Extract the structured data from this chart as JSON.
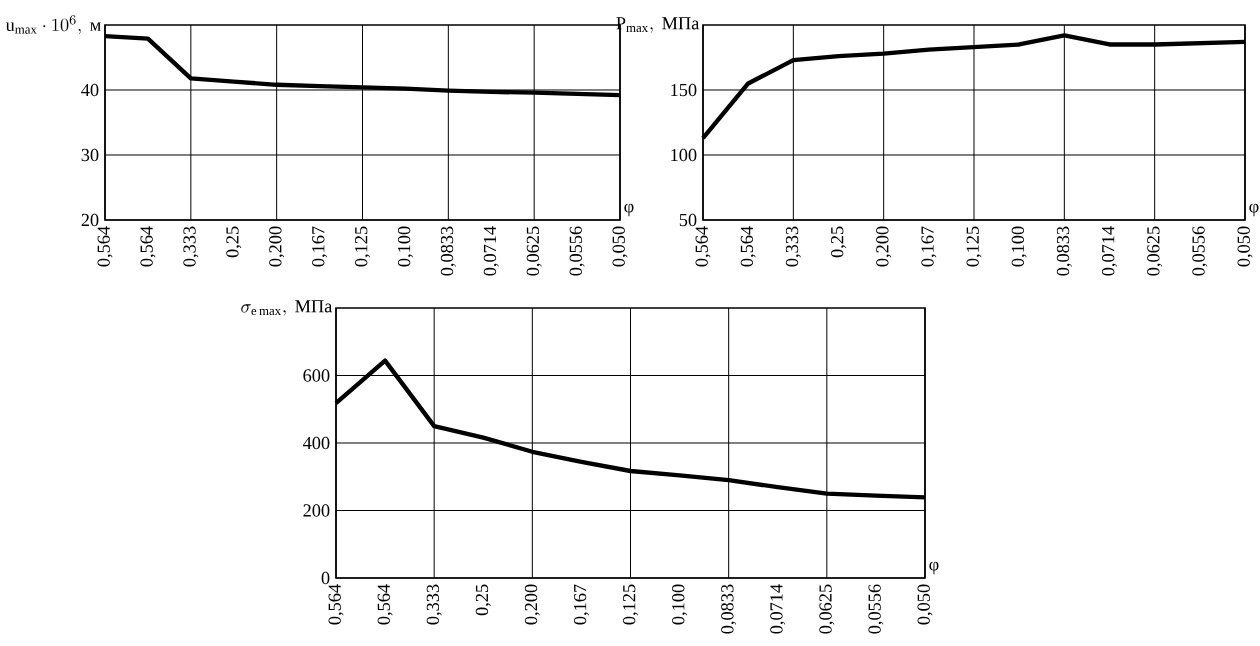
{
  "chart_data": [
    {
      "type": "line",
      "ylabel": "\\mathrm{u}_{\\mathrm{max}}\\cdot 10^{6},\\ \\mbox{м}",
      "xlabel": "φ",
      "categories": [
        "0,564",
        "0,564",
        "0,333",
        "0,25",
        "0,200",
        "0,167",
        "0,125",
        "0,100",
        "0,0833",
        "0,0714",
        "0,0625",
        "0,0556",
        "0,050"
      ],
      "values": [
        48.3,
        47.9,
        41.8,
        41.3,
        40.8,
        40.6,
        40.4,
        40.2,
        39.9,
        39.7,
        39.6,
        39.4,
        39.2
      ],
      "color": "#000000",
      "ylim": [
        20,
        50
      ],
      "yticks": [
        20,
        30,
        40
      ],
      "grid": true
    },
    {
      "type": "line",
      "ylabel": "\\mathrm{P}_{\\mathrm{max}},\\ \\mbox{МПа}",
      "xlabel": "φ",
      "categories": [
        "0,564",
        "0,564",
        "0,333",
        "0,25",
        "0,200",
        "0,167",
        "0,125",
        "0,100",
        "0,0833",
        "0,0714",
        "0,0625",
        "0,0556",
        "0,050"
      ],
      "values": [
        113,
        155,
        173,
        176,
        178,
        181,
        183,
        185,
        192,
        185,
        185,
        186,
        187
      ],
      "color": "#000000",
      "ylim": [
        50,
        200
      ],
      "yticks": [
        50,
        100,
        150
      ],
      "grid": true
    },
    {
      "type": "line",
      "ylabel": "\\sigma_{\\mathrm{e\\,max}},\\ \\mbox{МПа}",
      "xlabel": "φ",
      "categories": [
        "0,564",
        "0,564",
        "0,333",
        "0,25",
        "0,200",
        "0,167",
        "0,125",
        "0,100",
        "0,0833",
        "0,0714",
        "0,0625",
        "0,0556",
        "0,050"
      ],
      "values": [
        518,
        644,
        450,
        416,
        374,
        344,
        317,
        304,
        290,
        269,
        250,
        244,
        239
      ],
      "color": "#000000",
      "ylim": [
        0,
        800
      ],
      "yticks": [
        0,
        200,
        400,
        600
      ],
      "grid": true
    }
  ]
}
